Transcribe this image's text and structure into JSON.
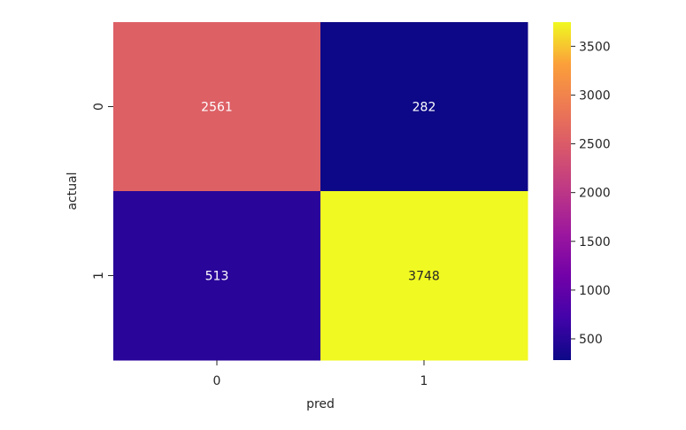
{
  "chart_data": {
    "type": "heatmap",
    "xlabel": "pred",
    "ylabel": "actual",
    "x_categories": [
      "0",
      "1"
    ],
    "y_categories": [
      "0",
      "1"
    ],
    "values": [
      [
        2561,
        282
      ],
      [
        513,
        3748
      ]
    ],
    "colormap": "plasma",
    "colorbar": {
      "vmin": 282,
      "vmax": 3748,
      "ticks": [
        500,
        1000,
        1500,
        2000,
        2500,
        3000,
        3500
      ],
      "tick_labels": [
        "500",
        "1000",
        "1500",
        "2000",
        "2500",
        "3000",
        "3500"
      ]
    }
  }
}
